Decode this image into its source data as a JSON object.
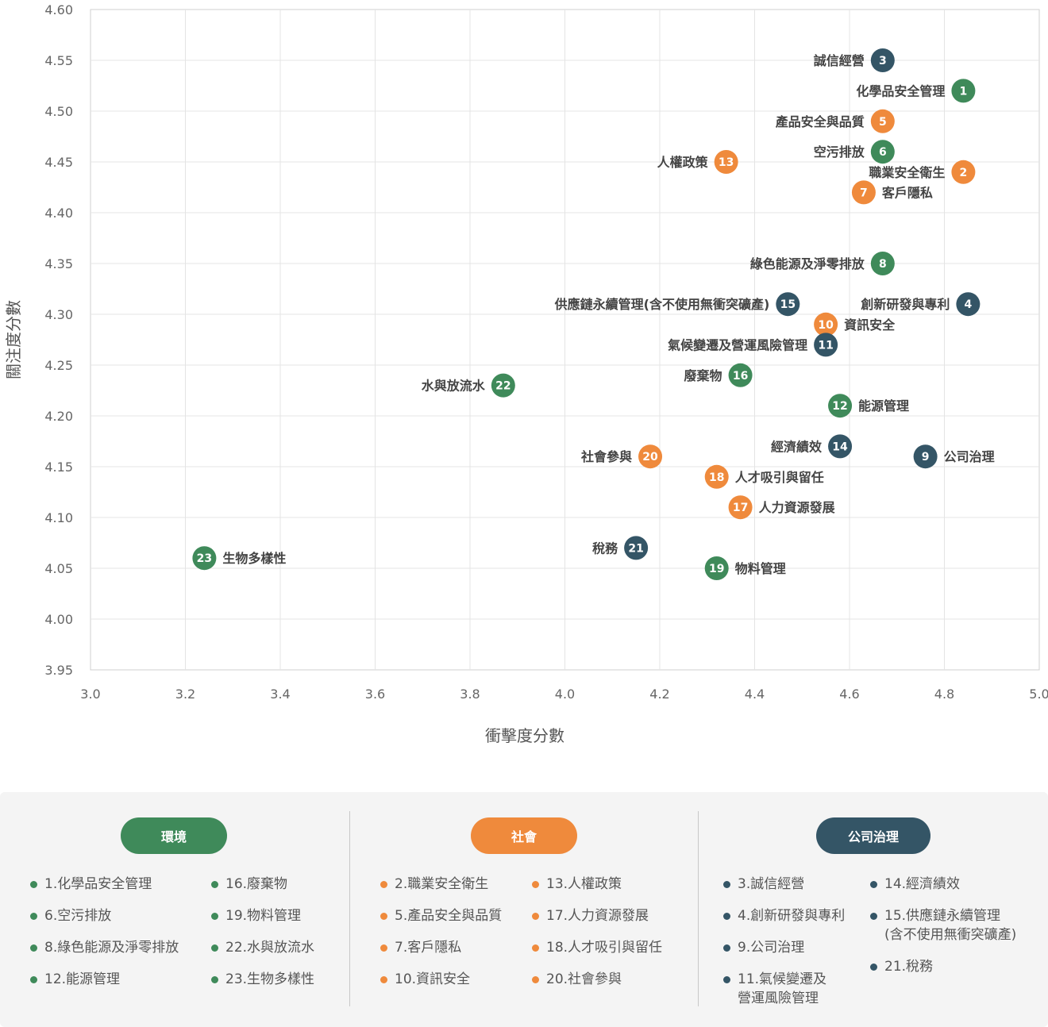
{
  "chart_data": {
    "type": "scatter",
    "xlabel": "衝擊度分數",
    "ylabel": "關注度分數",
    "xlim": [
      3.0,
      5.0
    ],
    "ylim": [
      3.95,
      4.6
    ],
    "x_ticks": [
      "3.0",
      "3.2",
      "3.4",
      "3.6",
      "3.8",
      "4.0",
      "4.2",
      "4.4",
      "4.6",
      "4.8",
      "5.0"
    ],
    "y_ticks": [
      "4.60",
      "4.55",
      "4.50",
      "4.45",
      "4.40",
      "4.35",
      "4.30",
      "4.25",
      "4.20",
      "4.15",
      "4.10",
      "4.05",
      "4.00",
      "3.95"
    ],
    "grid": true,
    "colors": {
      "環境": "#3f8a5a",
      "社會": "#ef8a3c",
      "公司治理": "#345566"
    },
    "points": [
      {
        "num": "1",
        "label": "化學品安全管理",
        "category": "環境",
        "x": 4.84,
        "y": 4.52,
        "label_side": "left"
      },
      {
        "num": "2",
        "label": "職業安全衛生",
        "category": "社會",
        "x": 4.84,
        "y": 4.44,
        "label_side": "left"
      },
      {
        "num": "3",
        "label": "誠信經營",
        "category": "公司治理",
        "x": 4.67,
        "y": 4.55,
        "label_side": "left"
      },
      {
        "num": "4",
        "label": "創新研發與專利",
        "category": "公司治理",
        "x": 4.85,
        "y": 4.31,
        "label_side": "left"
      },
      {
        "num": "5",
        "label": "產品安全與品質",
        "category": "社會",
        "x": 4.67,
        "y": 4.49,
        "label_side": "left"
      },
      {
        "num": "6",
        "label": "空污排放",
        "category": "環境",
        "x": 4.67,
        "y": 4.46,
        "label_side": "left"
      },
      {
        "num": "7",
        "label": "客戶隱私",
        "category": "社會",
        "x": 4.63,
        "y": 4.42,
        "label_side": "right"
      },
      {
        "num": "8",
        "label": "綠色能源及淨零排放",
        "category": "環境",
        "x": 4.67,
        "y": 4.35,
        "label_side": "left"
      },
      {
        "num": "9",
        "label": "公司治理",
        "category": "公司治理",
        "x": 4.76,
        "y": 4.16,
        "label_side": "right"
      },
      {
        "num": "10",
        "label": "資訊安全",
        "category": "社會",
        "x": 4.55,
        "y": 4.29,
        "label_side": "right"
      },
      {
        "num": "11",
        "label": "氣候變遷及營運風險管理",
        "category": "公司治理",
        "x": 4.55,
        "y": 4.27,
        "label_side": "left"
      },
      {
        "num": "12",
        "label": "能源管理",
        "category": "環境",
        "x": 4.58,
        "y": 4.21,
        "label_side": "right"
      },
      {
        "num": "13",
        "label": "人權政策",
        "category": "社會",
        "x": 4.34,
        "y": 4.45,
        "label_side": "left"
      },
      {
        "num": "14",
        "label": "經濟績效",
        "category": "公司治理",
        "x": 4.58,
        "y": 4.17,
        "label_side": "left"
      },
      {
        "num": "15",
        "label": "供應鏈永續管理(含不使用無衝突礦產)",
        "category": "公司治理",
        "x": 4.47,
        "y": 4.31,
        "label_side": "left"
      },
      {
        "num": "16",
        "label": "廢棄物",
        "category": "環境",
        "x": 4.37,
        "y": 4.24,
        "label_side": "left"
      },
      {
        "num": "17",
        "label": "人力資源發展",
        "category": "社會",
        "x": 4.37,
        "y": 4.11,
        "label_side": "right"
      },
      {
        "num": "18",
        "label": "人才吸引與留任",
        "category": "社會",
        "x": 4.32,
        "y": 4.14,
        "label_side": "right"
      },
      {
        "num": "19",
        "label": "物料管理",
        "category": "環境",
        "x": 4.32,
        "y": 4.05,
        "label_side": "right"
      },
      {
        "num": "20",
        "label": "社會參與",
        "category": "社會",
        "x": 4.18,
        "y": 4.16,
        "label_side": "left"
      },
      {
        "num": "21",
        "label": "稅務",
        "category": "公司治理",
        "x": 4.15,
        "y": 4.07,
        "label_side": "left"
      },
      {
        "num": "22",
        "label": "水與放流水",
        "category": "環境",
        "x": 3.87,
        "y": 4.23,
        "label_side": "left"
      },
      {
        "num": "23",
        "label": "生物多樣性",
        "category": "環境",
        "x": 3.24,
        "y": 4.06,
        "label_side": "right"
      }
    ]
  },
  "legend": {
    "groups": [
      {
        "title": "環境",
        "color": "#3f8a5a",
        "col1": [
          "1.化學品安全管理",
          "6.空污排放",
          "8.綠色能源及淨零排放",
          "12.能源管理"
        ],
        "col2": [
          "16.廢棄物",
          "19.物料管理",
          "22.水與放流水",
          "23.生物多樣性"
        ]
      },
      {
        "title": "社會",
        "color": "#ef8a3c",
        "col1": [
          "2.職業安全衛生",
          "5.產品安全與品質",
          "7.客戶隱私",
          "10.資訊安全"
        ],
        "col2": [
          "13.人權政策",
          "17.人力資源發展",
          "18.人才吸引與留任",
          "20.社會參與"
        ]
      },
      {
        "title": "公司治理",
        "color": "#345566",
        "col1": [
          "3.誠信經營",
          "4.創新研發與專利",
          "9.公司治理",
          "11.氣候變遷及\n營運風險管理"
        ],
        "col2": [
          "14.經濟績效",
          "15.供應鏈永續管理\n(含不使用無衝突礦產)",
          "21.稅務"
        ]
      }
    ]
  }
}
